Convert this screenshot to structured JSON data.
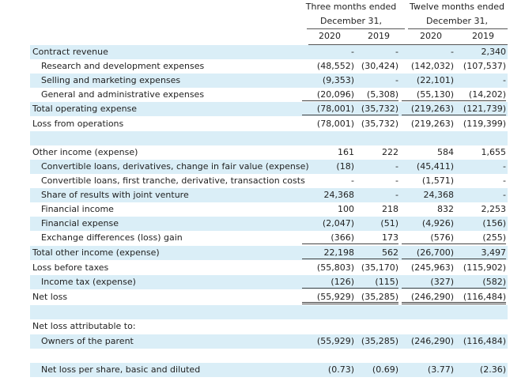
{
  "header": {
    "three_months_line1": "Three months ended",
    "three_months_line2": "December 31,",
    "twelve_months_line1": "Twelve months ended",
    "twelve_months_line2": "December 31,",
    "years": [
      "2020",
      "2019",
      "2020",
      "2019"
    ]
  },
  "rows": [
    {
      "label": "Contract revenue",
      "values": [
        "-",
        "-",
        "-",
        "2,340"
      ]
    },
    {
      "label": "Research and development expenses",
      "values": [
        "(48,552)",
        "(30,424)",
        "(142,032)",
        "(107,537)"
      ]
    },
    {
      "label": "Selling and marketing expenses",
      "values": [
        "(9,353)",
        "-",
        "(22,101)",
        "-"
      ]
    },
    {
      "label": "General and administrative expenses",
      "values": [
        "(20,096)",
        "(5,308)",
        "(55,130)",
        "(14,202)"
      ]
    },
    {
      "label": "Total operating expense",
      "values": [
        "(78,001)",
        "(35,732)",
        "(219,263)",
        "(121,739)"
      ]
    },
    {
      "label": "Loss from operations",
      "values": [
        "(78,001)",
        "(35,732)",
        "(219,263)",
        "(119,399)"
      ]
    },
    {
      "label": "Other income (expense)",
      "values": [
        "161",
        "222",
        "584",
        "1,655"
      ]
    },
    {
      "label": "Convertible loans, derivatives, change in fair value (expense)",
      "values": [
        "(18)",
        "-",
        "(45,411)",
        "-"
      ]
    },
    {
      "label": "Convertible loans, first tranche, derivative, transaction costs",
      "values": [
        "-",
        "-",
        "(1,571)",
        "-"
      ]
    },
    {
      "label": "Share of results with joint venture",
      "values": [
        "24,368",
        "-",
        "24,368",
        "-"
      ]
    },
    {
      "label": "Financial income",
      "values": [
        "100",
        "218",
        "832",
        "2,253"
      ]
    },
    {
      "label": "Financial expense",
      "values": [
        "(2,047)",
        "(51)",
        "(4,926)",
        "(156)"
      ]
    },
    {
      "label": "Exchange differences (loss) gain",
      "values": [
        "(366)",
        "173",
        "(576)",
        "(255)"
      ]
    },
    {
      "label": "Total other income (expense)",
      "values": [
        "22,198",
        "562",
        "(26,700)",
        "3,497"
      ]
    },
    {
      "label": "Loss before taxes",
      "values": [
        "(55,803)",
        "(35,170)",
        "(245,963)",
        "(115,902)"
      ]
    },
    {
      "label": "Income tax (expense)",
      "values": [
        "(126)",
        "(115)",
        "(327)",
        "(582)"
      ]
    },
    {
      "label": "Net loss",
      "values": [
        "(55,929)",
        "(35,285)",
        "(246,290)",
        "(116,484)"
      ]
    },
    {
      "label": "Net loss attributable to:",
      "values": [
        "",
        "",
        "",
        ""
      ]
    },
    {
      "label": "Owners of the parent",
      "values": [
        "(55,929)",
        "(35,285)",
        "(246,290)",
        "(116,484)"
      ]
    },
    {
      "label": "Net loss per share, basic and diluted",
      "values": [
        "(0.73)",
        "(0.69)",
        "(3.77)",
        "(2.36)"
      ]
    }
  ]
}
